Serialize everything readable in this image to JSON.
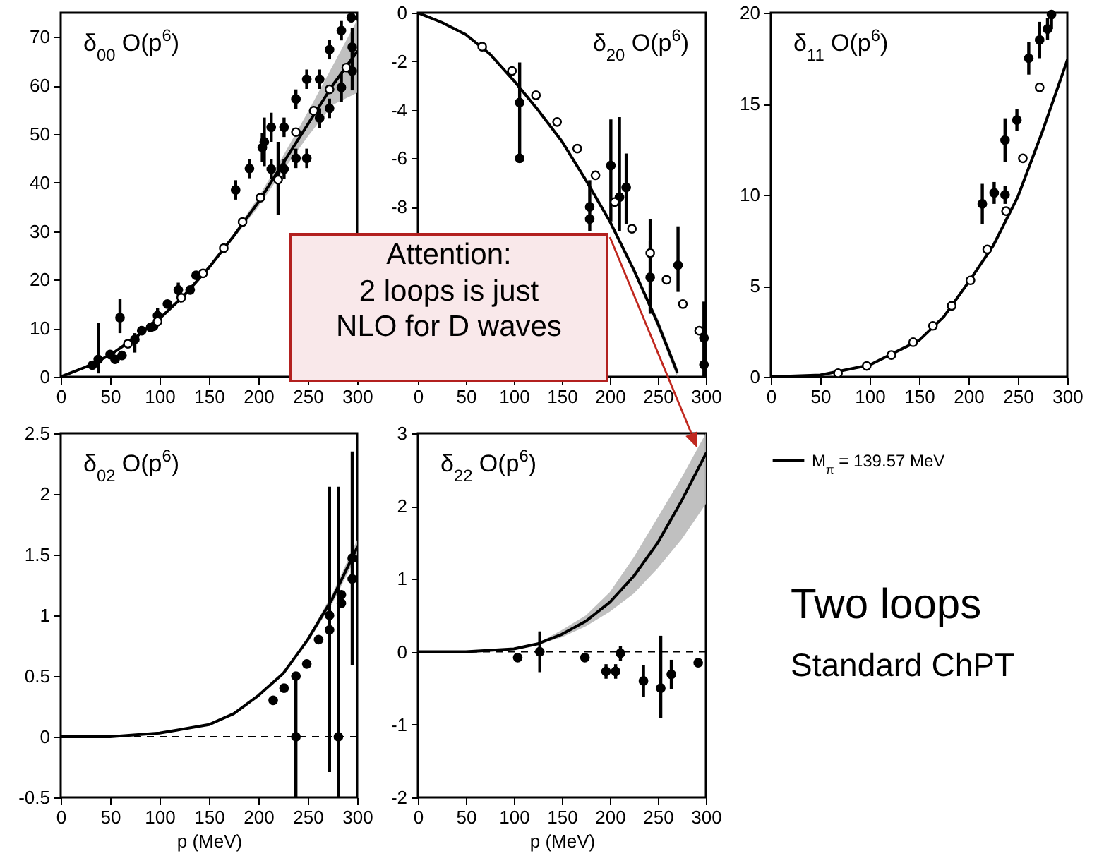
{
  "chart_data": [
    {
      "type": "scatter",
      "title": "δ$_{00}$ O(p$^{6}$)",
      "xlim": [
        0,
        300
      ],
      "xticks": [
        0,
        50,
        100,
        150,
        200,
        250,
        300
      ],
      "ylim": [
        0,
        75
      ],
      "yticks": [
        0,
        10,
        20,
        30,
        40,
        50,
        60,
        70
      ],
      "series": [
        {
          "type": "line",
          "color": "#000000",
          "x": [
            0,
            25,
            50,
            75,
            100,
            125,
            150,
            175,
            200,
            225,
            250,
            275,
            300
          ],
          "values": [
            0,
            2,
            4.5,
            8,
            12,
            16.8,
            22.5,
            29,
            36,
            44,
            52,
            60,
            67
          ],
          "lower": [
            0,
            2,
            4.5,
            8,
            12,
            16.8,
            22.5,
            28.5,
            35,
            42.5,
            49.5,
            56,
            58.5
          ],
          "upper": [
            0,
            2,
            4.5,
            8,
            12,
            16.8,
            22.5,
            29.5,
            37,
            45.5,
            54.5,
            64,
            73.5
          ]
        },
        {
          "type": "scatter",
          "marker": "circle",
          "color": "#000000",
          "x": [
            32,
            38,
            50,
            55,
            60,
            62,
            75,
            82,
            91,
            94,
            98,
            108,
            119,
            131,
            137,
            177,
            191,
            204,
            206,
            213,
            213,
            226,
            226,
            238,
            238,
            249,
            249,
            262,
            262,
            272,
            272,
            284,
            284,
            294,
            295,
            295
          ],
          "values": [
            2.4,
            3.6,
            4.6,
            3.6,
            12.2,
            4.4,
            7.7,
            9.5,
            10.2,
            10.4,
            12.6,
            15,
            17.9,
            17.9,
            20.9,
            38.5,
            42.9,
            47.2,
            48.4,
            51.4,
            42.8,
            51.4,
            42.8,
            57.2,
            45,
            61.3,
            45,
            61.3,
            53.3,
            67.4,
            55.3,
            71.3,
            59.6,
            74,
            67.9,
            63
          ],
          "errors": [
            null,
            [
              0.7,
              11.1
            ],
            null,
            null,
            [
              9,
              16
            ],
            null,
            [
              5,
              9
            ],
            null,
            null,
            null,
            1.5,
            null,
            1.5,
            null,
            null,
            2,
            2,
            3,
            5,
            3,
            2,
            2,
            2,
            2,
            2,
            2,
            2,
            2,
            2,
            2,
            2,
            2,
            3,
            1,
            4,
            4
          ]
        },
        {
          "type": "scatter",
          "marker": "circle",
          "color": "#ffffff",
          "x": [
            68,
            98,
            122,
            144,
            165,
            184,
            202,
            220,
            238,
            256,
            272,
            289
          ],
          "values": [
            6.8,
            11.4,
            16.3,
            21.3,
            26.5,
            31.9,
            36.9,
            40.6,
            50.4,
            54.8,
            59.2,
            63.7
          ],
          "errors": [
            null,
            null,
            null,
            null,
            null,
            null,
            null,
            [
              33.3,
              48.4
            ],
            null,
            null,
            null,
            null
          ]
        }
      ]
    },
    {
      "type": "scatter",
      "title": "δ$_{20}$ O(p$^{6}$)",
      "xlim": [
        0,
        300
      ],
      "xticks": [
        0,
        50,
        100,
        150,
        200,
        250,
        300
      ],
      "ylim": [
        -15,
        0
      ],
      "yticks": [
        -8,
        -6,
        -4,
        -2,
        0
      ],
      "series": [
        {
          "type": "line",
          "color": "#000000",
          "x": [
            0,
            25,
            50,
            75,
            100,
            125,
            150,
            175,
            200,
            225,
            250,
            270
          ],
          "values": [
            0,
            -0.4,
            -0.9,
            -1.7,
            -2.8,
            -4.0,
            -5.3,
            -6.9,
            -8.6,
            -10.6,
            -12.8,
            -14.8
          ],
          "lower": [
            0,
            -0.4,
            -0.9,
            -1.7,
            -2.8,
            -4.0,
            -5.3,
            -6.9,
            -8.6,
            -10.6,
            -13.0,
            -15
          ],
          "upper": [
            0,
            -0.4,
            -0.9,
            -1.7,
            -2.8,
            -4.0,
            -5.3,
            -6.9,
            -8.6,
            -10.6,
            -12.6,
            -14.6
          ]
        },
        {
          "type": "scatter",
          "marker": "circle",
          "color": "#000000",
          "x": [
            106,
            106,
            179,
            179,
            201,
            210,
            217,
            242,
            271,
            298,
            298
          ],
          "values": [
            -3.7,
            -6.0,
            -8.0,
            -8.5,
            -6.3,
            -7.6,
            -7.2,
            -10.9,
            -10.4,
            -13.4,
            -14.5
          ],
          "errors": [
            [
              -6,
              -2.05
            ],
            null,
            [
              -9,
              -6.9
            ],
            null,
            [
              -8.6,
              -4.4
            ],
            [
              -9,
              -4.3
            ],
            [
              -8.7,
              -5.8
            ],
            [
              -12.4,
              -9.4
            ],
            [
              -11.5,
              -8.8
            ],
            [
              -15,
              -11.9
            ],
            null
          ]
        },
        {
          "type": "scatter",
          "marker": "circle",
          "color": "#ffffff",
          "x": [
            67,
            98,
            123,
            145,
            166,
            185,
            205,
            223,
            242,
            259,
            276,
            293
          ],
          "values": [
            -1.4,
            -2.4,
            -3.4,
            -4.5,
            -5.6,
            -6.7,
            -7.8,
            -8.9,
            -9.9,
            -11,
            -12,
            -13.1
          ],
          "errors": [
            null,
            null,
            null,
            null,
            null,
            null,
            null,
            null,
            [
              -12.3,
              -8.5
            ],
            null,
            null,
            null
          ]
        }
      ]
    },
    {
      "type": "scatter",
      "title": "δ$_{11}$ O(p$^{6}$)",
      "xlim": [
        0,
        300
      ],
      "xticks": [
        0,
        50,
        100,
        150,
        200,
        250,
        300
      ],
      "ylim": [
        0,
        20
      ],
      "yticks": [
        0,
        5,
        10,
        15,
        20
      ],
      "legend": "bottom",
      "series": [
        {
          "type": "line",
          "name": "M$_{π}$ = 139.57 MeV",
          "color": "#000000",
          "x": [
            0,
            50,
            100,
            150,
            175,
            200,
            225,
            250,
            275,
            300
          ],
          "values": [
            0,
            0.1,
            0.65,
            2.0,
            3.3,
            5.2,
            7.2,
            9.9,
            13.5,
            17.4
          ]
        },
        {
          "type": "scatter",
          "marker": "circle",
          "color": "#000000",
          "x": [
            214,
            226,
            237,
            237,
            249,
            261,
            272,
            280,
            284
          ],
          "values": [
            9.5,
            10.1,
            13.0,
            10.0,
            14.1,
            17.5,
            18.5,
            19.1,
            19.9
          ],
          "errors": [
            1.1,
            0.6,
            1.2,
            0.5,
            0.6,
            0.9,
            1.0,
            0.6,
            [
              19.1,
              20
            ]
          ]
        },
        {
          "type": "scatter",
          "marker": "circle",
          "color": "#ffffff",
          "x": [
            68,
            97,
            122,
            144,
            164,
            183,
            202,
            219,
            238,
            255,
            272
          ],
          "values": [
            0.2,
            0.6,
            1.2,
            1.9,
            2.8,
            3.9,
            5.3,
            7.0,
            9.1,
            12.0,
            15.9
          ]
        }
      ]
    },
    {
      "type": "scatter",
      "title": "δ$_{02}$ O(p$^{6}$)",
      "xlabel": "p (MeV)",
      "xlim": [
        0,
        300
      ],
      "xticks": [
        0,
        50,
        100,
        150,
        200,
        250,
        300
      ],
      "ylim": [
        -0.5,
        2.5
      ],
      "yticks": [
        -0.5,
        0,
        0.5,
        1,
        1.5,
        2,
        2.5
      ],
      "ref_lines": [
        {
          "axis": "y",
          "value": 0,
          "line_style": "dashed"
        }
      ],
      "series": [
        {
          "type": "line",
          "color": "#000000",
          "x": [
            0,
            50,
            100,
            150,
            175,
            200,
            225,
            250,
            275,
            300
          ],
          "values": [
            0,
            0,
            0.03,
            0.1,
            0.19,
            0.34,
            0.52,
            0.8,
            1.14,
            1.56
          ],
          "lower": [
            0,
            0,
            0.03,
            0.1,
            0.19,
            0.34,
            0.52,
            0.78,
            1.1,
            1.5
          ],
          "upper": [
            0,
            0,
            0.03,
            0.1,
            0.19,
            0.34,
            0.52,
            0.82,
            1.18,
            1.62
          ]
        },
        {
          "type": "scatter",
          "marker": "circle",
          "color": "#000000",
          "x": [
            215,
            226,
            238,
            238,
            249,
            261,
            272,
            272,
            281,
            284,
            284,
            295,
            295
          ],
          "values": [
            0.3,
            0.4,
            0.5,
            0,
            0.6,
            0.8,
            1.0,
            0.88,
            0,
            1.17,
            1.1,
            1.47,
            1.3
          ],
          "errors": [
            null,
            null,
            [
              -0.5,
              0.5
            ],
            null,
            null,
            null,
            null,
            [
              -0.29,
              2.06
            ],
            [
              -0.5,
              2.06
            ],
            null,
            null,
            [
              0.59,
              2.35
            ],
            null
          ]
        }
      ]
    },
    {
      "type": "scatter",
      "title": "δ$_{22}$ O(p$^{6}$)",
      "xlabel": "p (MeV)",
      "xlim": [
        0,
        300
      ],
      "xticks": [
        0,
        50,
        100,
        150,
        200,
        250,
        300
      ],
      "ylim": [
        -2,
        3
      ],
      "yticks": [
        -2,
        -1,
        0,
        1,
        2,
        3
      ],
      "ref_lines": [
        {
          "axis": "y",
          "value": 0,
          "line_style": "dashed"
        }
      ],
      "annotations": [
        "Attention:\n2 loops is just\nNLO for D waves"
      ],
      "series": [
        {
          "type": "line",
          "color": "#000000",
          "x": [
            0,
            50,
            100,
            125,
            150,
            175,
            200,
            225,
            250,
            275,
            300
          ],
          "values": [
            0,
            0,
            0.04,
            0.11,
            0.24,
            0.42,
            0.68,
            1.04,
            1.5,
            2.08,
            2.72
          ],
          "lower": [
            0,
            0,
            0.04,
            0.1,
            0.2,
            0.35,
            0.55,
            0.8,
            1.15,
            1.55,
            2.03
          ],
          "upper": [
            0,
            0,
            0.04,
            0.12,
            0.3,
            0.5,
            0.82,
            1.3,
            1.85,
            2.4,
            3.0
          ]
        },
        {
          "type": "scatter",
          "marker": "circle",
          "color": "#000000",
          "x": [
            104,
            127,
            174,
            196,
            206,
            211,
            235,
            253,
            264,
            292
          ],
          "values": [
            -0.08,
            0,
            -0.08,
            -0.27,
            -0.27,
            -0.02,
            -0.4,
            -0.5,
            -0.31,
            -0.15
          ],
          "errors": [
            null,
            0.28,
            null,
            0.1,
            0.1,
            0.1,
            0.22,
            [
              -0.91,
              0.22
            ],
            0.2,
            null
          ]
        }
      ]
    },
    {
      "type": "other",
      "annotations": [
        "Two loops",
        "Standard ChPT"
      ]
    }
  ]
}
